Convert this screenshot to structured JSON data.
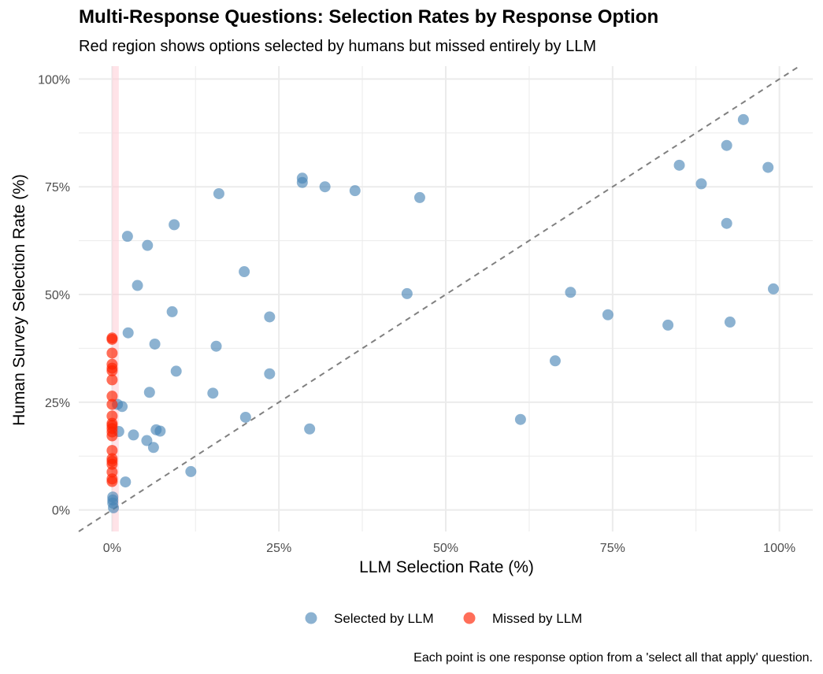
{
  "title": "Multi-Response Questions: Selection Rates by Response Option",
  "subtitle": "Red region shows options selected by humans but missed entirely by LLM",
  "caption": "Each point is one response option from a 'select all that apply' question.",
  "colors": {
    "selected": "#4682B4",
    "missed": "#FF2000",
    "band": "#FFCCD5",
    "refline": "#808080",
    "grid": "#EBEBEB"
  },
  "chart_data": {
    "type": "scatter",
    "xlabel": "LLM Selection Rate (%)",
    "ylabel": "Human Survey Selection Rate (%)",
    "xlim": [
      -5,
      105
    ],
    "ylim": [
      -5,
      103
    ],
    "x_ticks": [
      0,
      25,
      50,
      75,
      100
    ],
    "y_ticks": [
      0,
      25,
      50,
      75,
      100
    ],
    "x_tick_labels": [
      "0%",
      "25%",
      "50%",
      "75%",
      "100%"
    ],
    "y_tick_labels": [
      "0%",
      "25%",
      "50%",
      "75%",
      "100%"
    ],
    "reference_line": {
      "style": "dashed",
      "slope": 1,
      "intercept": 0
    },
    "highlight_band": {
      "x_from": 0,
      "x_to": 1,
      "meaning": "missed by LLM"
    },
    "legend": [
      {
        "key": "selected",
        "label": "Selected by LLM"
      },
      {
        "key": "missed",
        "label": "Missed by LLM"
      }
    ],
    "legend_position": "bottom",
    "series": [
      {
        "name": "Selected by LLM",
        "key": "selected",
        "points": [
          [
            94.6,
            90.6
          ],
          [
            92.1,
            84.6
          ],
          [
            85.0,
            80.0
          ],
          [
            98.3,
            79.5
          ],
          [
            88.3,
            75.7
          ],
          [
            92.1,
            66.5
          ],
          [
            99.1,
            51.3
          ],
          [
            68.7,
            50.5
          ],
          [
            74.3,
            45.3
          ],
          [
            83.3,
            42.9
          ],
          [
            92.6,
            43.6
          ],
          [
            66.4,
            34.6
          ],
          [
            61.2,
            21.0
          ],
          [
            28.5,
            77.0
          ],
          [
            28.5,
            76.0
          ],
          [
            31.9,
            75.0
          ],
          [
            36.4,
            74.1
          ],
          [
            46.1,
            72.5
          ],
          [
            44.2,
            50.2
          ],
          [
            16.0,
            73.4
          ],
          [
            9.3,
            66.2
          ],
          [
            2.3,
            63.5
          ],
          [
            5.3,
            61.4
          ],
          [
            19.8,
            55.3
          ],
          [
            3.8,
            52.1
          ],
          [
            9.0,
            46.0
          ],
          [
            23.6,
            44.8
          ],
          [
            2.4,
            41.1
          ],
          [
            6.4,
            38.5
          ],
          [
            15.6,
            38.0
          ],
          [
            9.6,
            32.2
          ],
          [
            23.6,
            31.6
          ],
          [
            5.6,
            27.3
          ],
          [
            15.1,
            27.1
          ],
          [
            1.5,
            24.0
          ],
          [
            0.8,
            24.5
          ],
          [
            20.0,
            21.5
          ],
          [
            29.6,
            18.8
          ],
          [
            6.6,
            18.6
          ],
          [
            7.2,
            18.3
          ],
          [
            1.0,
            18.2
          ],
          [
            3.2,
            17.4
          ],
          [
            5.2,
            16.1
          ],
          [
            6.2,
            14.5
          ],
          [
            11.8,
            8.9
          ],
          [
            2.0,
            6.5
          ],
          [
            0.1,
            3.0
          ],
          [
            0.1,
            2.3
          ],
          [
            0.1,
            1.6
          ],
          [
            0.2,
            0.5
          ]
        ]
      },
      {
        "name": "Missed by LLM",
        "key": "missed",
        "points": [
          [
            0,
            39.9
          ],
          [
            0,
            39.6
          ],
          [
            0,
            36.4
          ],
          [
            0,
            33.8
          ],
          [
            0,
            32.9
          ],
          [
            0,
            32.3
          ],
          [
            0,
            30.2
          ],
          [
            0,
            26.4
          ],
          [
            0,
            24.5
          ],
          [
            0,
            21.8
          ],
          [
            0,
            20.1
          ],
          [
            0,
            19.6
          ],
          [
            0,
            18.9
          ],
          [
            0,
            18.1
          ],
          [
            0,
            17.2
          ],
          [
            0,
            13.8
          ],
          [
            0,
            11.9
          ],
          [
            0,
            11.3
          ],
          [
            0,
            10.6
          ],
          [
            0,
            8.8
          ],
          [
            0,
            7.2
          ],
          [
            0,
            6.6
          ]
        ]
      }
    ]
  }
}
